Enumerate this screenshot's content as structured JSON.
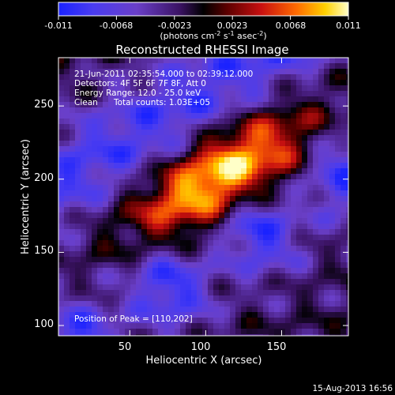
{
  "chart_data": {
    "type": "heatmap",
    "title": "Reconstructed RHESSI Image",
    "xlabel": "Heliocentric X (arcsec)",
    "ylabel": "Heliocentric Y (arcsec)",
    "xlim": [
      3,
      194
    ],
    "ylim": [
      93,
      283
    ],
    "x_ticks": [
      50,
      100,
      150
    ],
    "y_ticks": [
      100,
      150,
      200,
      250
    ],
    "colorbar": {
      "min": -0.011,
      "max": 0.011,
      "ticks": [
        "-0.011",
        "-0.0068",
        "-0.0023",
        "0.0023",
        "0.0068",
        "0.011"
      ],
      "unit_base": "(photons cm",
      "unit_exp1": "-2",
      "unit_mid": " s",
      "unit_exp2": "-1",
      "unit_mid2": " asec",
      "unit_exp3": "-2",
      "unit_end": ")"
    },
    "annotations": {
      "time_range": "21-Jun-2011 02:35:54.000 to 02:39:12.000",
      "detectors": "Detectors: 4F 5F 6F 7F 8F, Att 0",
      "energy_range": "Energy Range: 12.0 - 25.0 keV",
      "method": "Clean",
      "total_counts": "Total counts: 1.03E+05",
      "peak": "Position of Peak = [110,202]"
    },
    "peak": [
      110,
      202
    ],
    "emission_angle_deg": 33
  },
  "footer_date": "15-Aug-2013 16:56"
}
